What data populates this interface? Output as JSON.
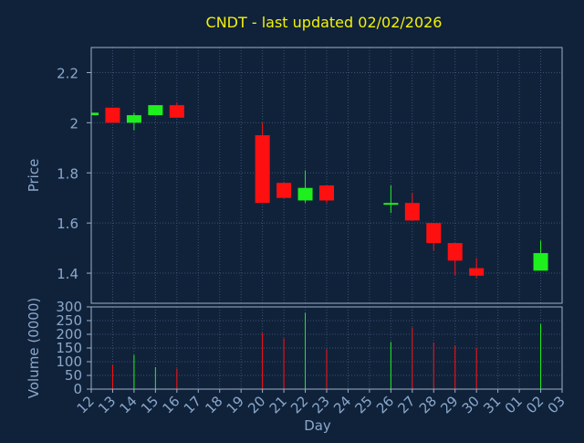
{
  "chart_data": [
    {
      "type": "candlestick",
      "title": "CNDT - last updated 02/02/2026",
      "ylabel": "Price",
      "ylim": [
        1.28,
        2.3
      ],
      "yticks": [
        1.4,
        1.6,
        1.8,
        2.0,
        2.2
      ],
      "ytick_labels": [
        "1.4",
        "1.6",
        "1.8",
        "2",
        "2.2"
      ],
      "grid": true,
      "candles": [
        {
          "day": "12",
          "open": 2.03,
          "high": 2.04,
          "low": 2.025,
          "close": 2.04
        },
        {
          "day": "13",
          "open": 2.06,
          "high": 2.06,
          "low": 2.0,
          "close": 2.0
        },
        {
          "day": "14",
          "open": 2.0,
          "high": 2.04,
          "low": 1.97,
          "close": 2.03
        },
        {
          "day": "15",
          "open": 2.03,
          "high": 2.07,
          "low": 2.03,
          "close": 2.07
        },
        {
          "day": "16",
          "open": 2.07,
          "high": 2.08,
          "low": 2.02,
          "close": 2.02
        },
        {
          "day": "20",
          "open": 1.95,
          "high": 2.0,
          "low": 1.68,
          "close": 1.68
        },
        {
          "day": "21",
          "open": 1.76,
          "high": 1.76,
          "low": 1.7,
          "close": 1.7
        },
        {
          "day": "22",
          "open": 1.69,
          "high": 1.81,
          "low": 1.68,
          "close": 1.74
        },
        {
          "day": "23",
          "open": 1.75,
          "high": 1.75,
          "low": 1.68,
          "close": 1.69
        },
        {
          "day": "26",
          "open": 1.675,
          "high": 1.75,
          "low": 1.64,
          "close": 1.68
        },
        {
          "day": "27",
          "open": 1.68,
          "high": 1.72,
          "low": 1.61,
          "close": 1.61
        },
        {
          "day": "28",
          "open": 1.6,
          "high": 1.6,
          "low": 1.49,
          "close": 1.52
        },
        {
          "day": "29",
          "open": 1.52,
          "high": 1.52,
          "low": 1.39,
          "close": 1.45
        },
        {
          "day": "30",
          "open": 1.42,
          "high": 1.46,
          "low": 1.38,
          "close": 1.39
        },
        {
          "day": "02",
          "open": 1.41,
          "high": 1.53,
          "low": 1.41,
          "close": 1.48
        }
      ]
    },
    {
      "type": "bar",
      "xlabel": "Day",
      "ylabel": "Volume (0000)",
      "ylim": [
        0,
        300
      ],
      "yticks": [
        0,
        50,
        100,
        150,
        200,
        250,
        300
      ],
      "ytick_labels": [
        "0",
        "50",
        "100",
        "150",
        "200",
        "250",
        "300"
      ],
      "categories": [
        "12",
        "13",
        "14",
        "15",
        "16",
        "17",
        "18",
        "19",
        "20",
        "21",
        "22",
        "23",
        "24",
        "25",
        "26",
        "27",
        "28",
        "29",
        "30",
        "31",
        "01",
        "02",
        "03"
      ],
      "bars": [
        {
          "day": "13",
          "value": 88,
          "direction": "down"
        },
        {
          "day": "14",
          "value": 125,
          "direction": "up"
        },
        {
          "day": "15",
          "value": 80,
          "direction": "up"
        },
        {
          "day": "16",
          "value": 75,
          "direction": "down"
        },
        {
          "day": "20",
          "value": 205,
          "direction": "down"
        },
        {
          "day": "21",
          "value": 185,
          "direction": "down"
        },
        {
          "day": "22",
          "value": 278,
          "direction": "up"
        },
        {
          "day": "23",
          "value": 145,
          "direction": "down"
        },
        {
          "day": "26",
          "value": 172,
          "direction": "up"
        },
        {
          "day": "27",
          "value": 225,
          "direction": "down"
        },
        {
          "day": "28",
          "value": 170,
          "direction": "down"
        },
        {
          "day": "29",
          "value": 160,
          "direction": "down"
        },
        {
          "day": "30",
          "value": 150,
          "direction": "down"
        },
        {
          "day": "02",
          "value": 238,
          "direction": "up"
        }
      ]
    }
  ],
  "colors": {
    "background": "#10223a",
    "title": "#f2f20a",
    "axis_text": "#8aa8cc",
    "axis_line": "#9ab0c8",
    "grid": "#3a5272",
    "up": "#1ef01e",
    "down": "#ff1010"
  }
}
